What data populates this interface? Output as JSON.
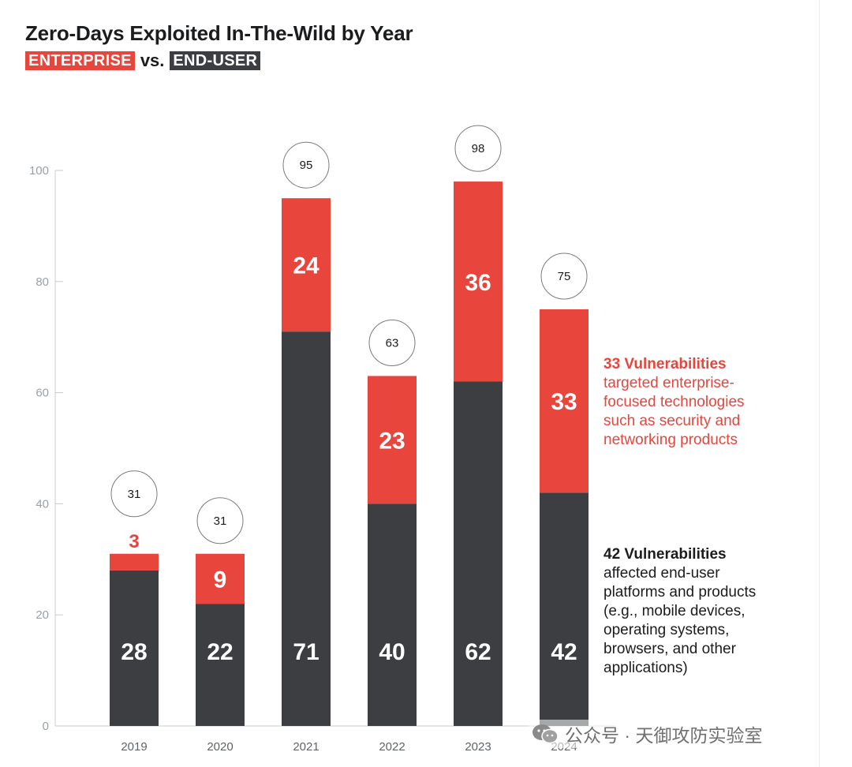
{
  "header": {
    "title": "Zero-Days Exploited In-The-Wild by Year",
    "tag_enterprise": "ENTERPRISE",
    "vs": "vs.",
    "tag_end_user": "END-USER"
  },
  "colors": {
    "enterprise": "#e8453c",
    "end_user": "#3c3e42",
    "axis": "#9aa0a6",
    "bubble_border": "#7a7a7a",
    "text_dark": "#1b1c1e"
  },
  "chart_data": {
    "type": "bar",
    "stacked": true,
    "title": "Zero-Days Exploited In-The-Wild by Year",
    "categories": [
      "2019",
      "2020",
      "2021",
      "2022",
      "2023",
      "2024"
    ],
    "series": [
      {
        "name": "END-USER",
        "values": [
          28,
          22,
          71,
          40,
          62,
          42
        ]
      },
      {
        "name": "ENTERPRISE",
        "values": [
          3,
          9,
          24,
          23,
          36,
          33
        ]
      }
    ],
    "totals": [
      31,
      31,
      95,
      63,
      98,
      75
    ],
    "ylim": [
      0,
      100
    ],
    "yticks": [
      0,
      20,
      40,
      60,
      80,
      100
    ],
    "xlabel": "",
    "ylabel": "",
    "grid": false,
    "legend": "subtitle"
  },
  "annotations": {
    "enterprise": {
      "head": "33 Vulnerabilities",
      "text": "targeted enterprise-\nfocused technologies\nsuch as security and\nnetworking products"
    },
    "end_user": {
      "head": "42 Vulnerabilities",
      "text": "affected end-user\nplatforms and products\n(e.g., mobile devices,\noperating systems,\nbrowsers, and other\napplications)"
    }
  },
  "watermark": {
    "text": "公众号 · 天御攻防实验室",
    "icon": "wechat-icon"
  }
}
